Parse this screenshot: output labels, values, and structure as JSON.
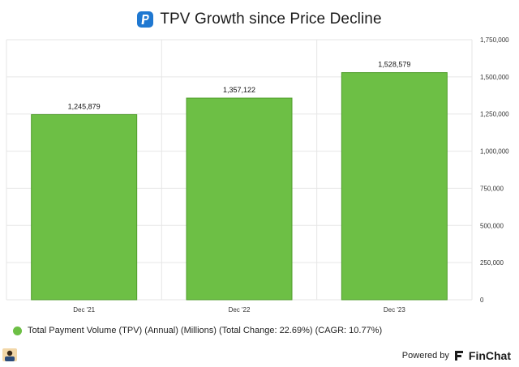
{
  "header": {
    "title": "TPV Growth since Price Decline",
    "logo_icon": "paypal-logo-icon"
  },
  "colors": {
    "bar": "#6dbf45",
    "bar_border": "#4f9d2b",
    "grid": "#e6e6e6",
    "logo": "#1f78d1"
  },
  "chart_data": {
    "type": "bar",
    "title": "TPV Growth since Price Decline",
    "categories": [
      "Dec '21",
      "Dec '22",
      "Dec '23"
    ],
    "series": [
      {
        "name": "Total Payment Volume (TPV) (Annual) (Millions) (Total Change: 22.69%) (CAGR: 10.77%)",
        "values": [
          1245879,
          1357122,
          1528579
        ]
      }
    ],
    "data_labels": [
      "1,245,879",
      "1,357,122",
      "1,528,579"
    ],
    "y_ticks": [
      0,
      250000,
      500000,
      750000,
      1000000,
      1250000,
      1500000,
      1750000
    ],
    "y_tick_labels": [
      "0",
      "250,000",
      "500,000",
      "750,000",
      "1,000,000",
      "1,250,000",
      "1,500,000",
      "1,750,000"
    ],
    "ylim": [
      0,
      1750000
    ],
    "y_axis_side": "right",
    "grid": true,
    "legend_position": "bottom-left",
    "xlabel": "",
    "ylabel": ""
  },
  "legend": {
    "label": "Total Payment Volume (TPV) (Annual) (Millions) (Total Change: 22.69%) (CAGR: 10.77%)"
  },
  "footer": {
    "powered_by": "Powered by",
    "brand": "FinChat",
    "brand_icon": "finchat-logo-icon",
    "avatar_icon": "user-avatar-icon"
  }
}
